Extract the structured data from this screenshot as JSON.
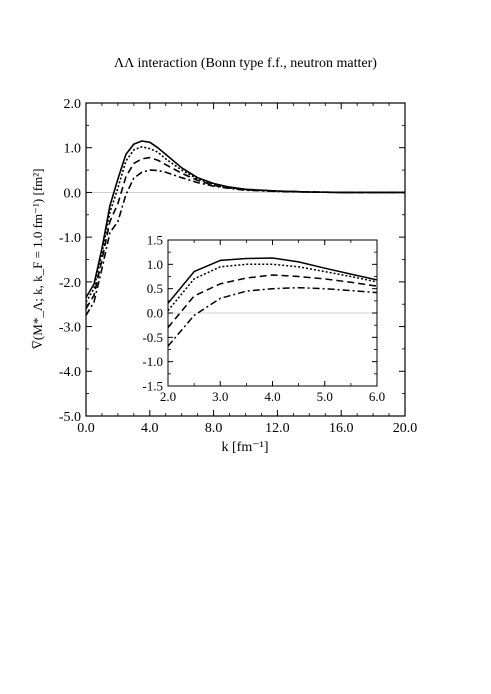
{
  "chart_data": [
    {
      "type": "line",
      "title": "ΛΛ interaction (Bonn type f.f., neutron matter)",
      "xlabel": "k [fm⁻¹]",
      "ylabel": "V̅(M*_Λ; k, k_F = 1.0 fm⁻¹) [fm²]",
      "xlim": [
        0.0,
        20.0
      ],
      "ylim": [
        -5.0,
        2.0
      ],
      "xticks": [
        "0.0",
        "4.0",
        "8.0",
        "12.0",
        "16.0",
        "20.0"
      ],
      "yticks": [
        "2.0",
        "1.0",
        "0.0",
        "-1.0",
        "-2.0",
        "-3.0",
        "-4.0",
        "-5.0"
      ],
      "grid": false,
      "legend": "none",
      "series": [
        {
          "style": "solid",
          "x": [
            0.0,
            0.5,
            1.0,
            1.5,
            2.0,
            2.5,
            3.0,
            3.5,
            4.0,
            4.5,
            5.0,
            6.0,
            7.0,
            8.0,
            9.0,
            10.0,
            12.0,
            14.0,
            16.0,
            18.0,
            20.0
          ],
          "y": [
            -2.35,
            -2.05,
            -1.25,
            -0.3,
            0.3,
            0.85,
            1.08,
            1.15,
            1.12,
            1.0,
            0.85,
            0.55,
            0.33,
            0.2,
            0.12,
            0.07,
            0.03,
            0.01,
            0.0,
            0.0,
            0.0
          ]
        },
        {
          "style": "dotted",
          "x": [
            0.0,
            0.5,
            1.0,
            1.5,
            2.0,
            2.5,
            3.0,
            3.5,
            4.0,
            4.5,
            5.0,
            6.0,
            7.0,
            8.0,
            9.0,
            10.0,
            12.0,
            14.0,
            16.0,
            18.0,
            20.0
          ],
          "y": [
            -2.45,
            -2.15,
            -1.35,
            -0.45,
            0.1,
            0.7,
            0.95,
            1.02,
            0.98,
            0.9,
            0.75,
            0.5,
            0.3,
            0.18,
            0.11,
            0.06,
            0.03,
            0.01,
            0.0,
            0.0,
            0.0
          ]
        },
        {
          "style": "dashed",
          "x": [
            0.0,
            0.5,
            1.0,
            1.5,
            2.0,
            2.5,
            3.0,
            3.5,
            4.0,
            4.5,
            5.0,
            6.0,
            7.0,
            8.0,
            9.0,
            10.0,
            12.0,
            14.0,
            16.0,
            18.0,
            20.0
          ],
          "y": [
            -2.6,
            -2.3,
            -1.5,
            -0.65,
            -0.25,
            0.35,
            0.65,
            0.75,
            0.78,
            0.72,
            0.62,
            0.43,
            0.27,
            0.16,
            0.1,
            0.06,
            0.03,
            0.01,
            0.0,
            0.0,
            0.0
          ]
        },
        {
          "style": "dash-dot",
          "x": [
            0.0,
            0.5,
            1.0,
            1.5,
            2.0,
            2.5,
            3.0,
            3.5,
            4.0,
            4.5,
            5.0,
            6.0,
            7.0,
            8.0,
            9.0,
            10.0,
            12.0,
            14.0,
            16.0,
            18.0,
            20.0
          ],
          "y": [
            -2.75,
            -2.45,
            -1.7,
            -0.9,
            -0.65,
            -0.05,
            0.32,
            0.45,
            0.5,
            0.49,
            0.45,
            0.33,
            0.22,
            0.14,
            0.09,
            0.05,
            0.02,
            0.01,
            0.0,
            0.0,
            0.0
          ]
        }
      ]
    },
    {
      "type": "line",
      "title": "",
      "xlabel": "",
      "ylabel": "",
      "xlim": [
        2.0,
        6.0
      ],
      "ylim": [
        -1.5,
        1.5
      ],
      "xticks": [
        "2.0",
        "3.0",
        "4.0",
        "5.0",
        "6.0"
      ],
      "yticks": [
        "1.5",
        "1.0",
        "0.5",
        "0.0",
        "-0.5",
        "-1.0",
        "-1.5"
      ],
      "grid": false,
      "legend": "none",
      "series": [
        {
          "style": "solid",
          "x": [
            2.0,
            2.5,
            3.0,
            3.5,
            4.0,
            4.5,
            5.0,
            5.5,
            6.0
          ],
          "y": [
            0.2,
            0.85,
            1.08,
            1.12,
            1.13,
            1.05,
            0.92,
            0.8,
            0.68
          ]
        },
        {
          "style": "dotted",
          "x": [
            2.0,
            2.5,
            3.0,
            3.5,
            4.0,
            4.5,
            5.0,
            5.5,
            6.0
          ],
          "y": [
            0.05,
            0.7,
            0.95,
            1.0,
            1.0,
            0.95,
            0.85,
            0.75,
            0.64
          ]
        },
        {
          "style": "dashed",
          "x": [
            2.0,
            2.5,
            3.0,
            3.5,
            4.0,
            4.5,
            5.0,
            5.5,
            6.0
          ],
          "y": [
            -0.3,
            0.35,
            0.6,
            0.72,
            0.78,
            0.75,
            0.7,
            0.63,
            0.55
          ]
        },
        {
          "style": "dash-dot",
          "x": [
            2.0,
            2.5,
            3.0,
            3.5,
            4.0,
            4.5,
            5.0,
            5.5,
            6.0
          ],
          "y": [
            -0.68,
            -0.05,
            0.3,
            0.45,
            0.5,
            0.52,
            0.5,
            0.46,
            0.42
          ]
        }
      ]
    }
  ]
}
